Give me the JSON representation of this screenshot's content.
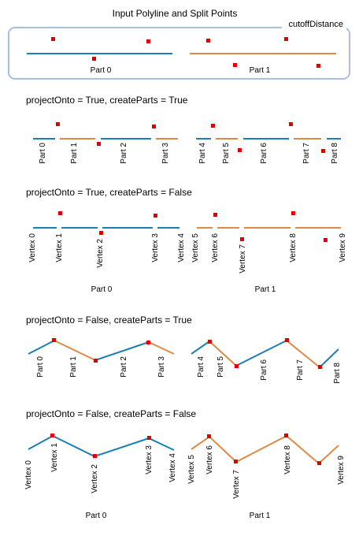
{
  "colors": {
    "blue": "#1a7fb5",
    "orange": "#dd8a45",
    "red": "#e00000",
    "frame": "#a9bfe0"
  },
  "top": {
    "title": "Input Polyline and Split Points",
    "legend_label": "cutoffDistance",
    "part_labels": [
      "Part 0",
      "Part 1"
    ]
  },
  "sections": [
    {
      "heading": "projectOnto = True, createParts = True",
      "labels": [
        "Part 0",
        "Part 1",
        "Part 2",
        "Part 3",
        "Part 4",
        "Part 5",
        "Part 6",
        "Part 7",
        "Part 8"
      ]
    },
    {
      "heading": "projectOnto = True, createParts = False",
      "labels": [
        "Vertex 0",
        "Vertex 1",
        "Vertex 2",
        "Vertex 3",
        "Vertex 4",
        "Vertex 5",
        "Vertex 6",
        "Vertex 7",
        "Vertex 8",
        "Vertex 9"
      ],
      "part_labels": [
        "Part 0",
        "Part 1"
      ]
    },
    {
      "heading": "projectOnto = False, createParts = True",
      "labels": [
        "Part 0",
        "Part 1",
        "Part 2",
        "Part 3",
        "Part 4",
        "Part 5",
        "Part 6",
        "Part 7",
        "Part 8"
      ]
    },
    {
      "heading": "projectOnto = False, createParts =  False",
      "labels": [
        "Vertex 0",
        "Vertex 1",
        "Vertex 2",
        "Vertex 3",
        "Vertex 4",
        "Vertex 5",
        "Vertex 6",
        "Vertex 7",
        "Vertex 8",
        "Vertex 9"
      ],
      "part_labels": [
        "Part 0",
        "Part 1"
      ]
    }
  ]
}
